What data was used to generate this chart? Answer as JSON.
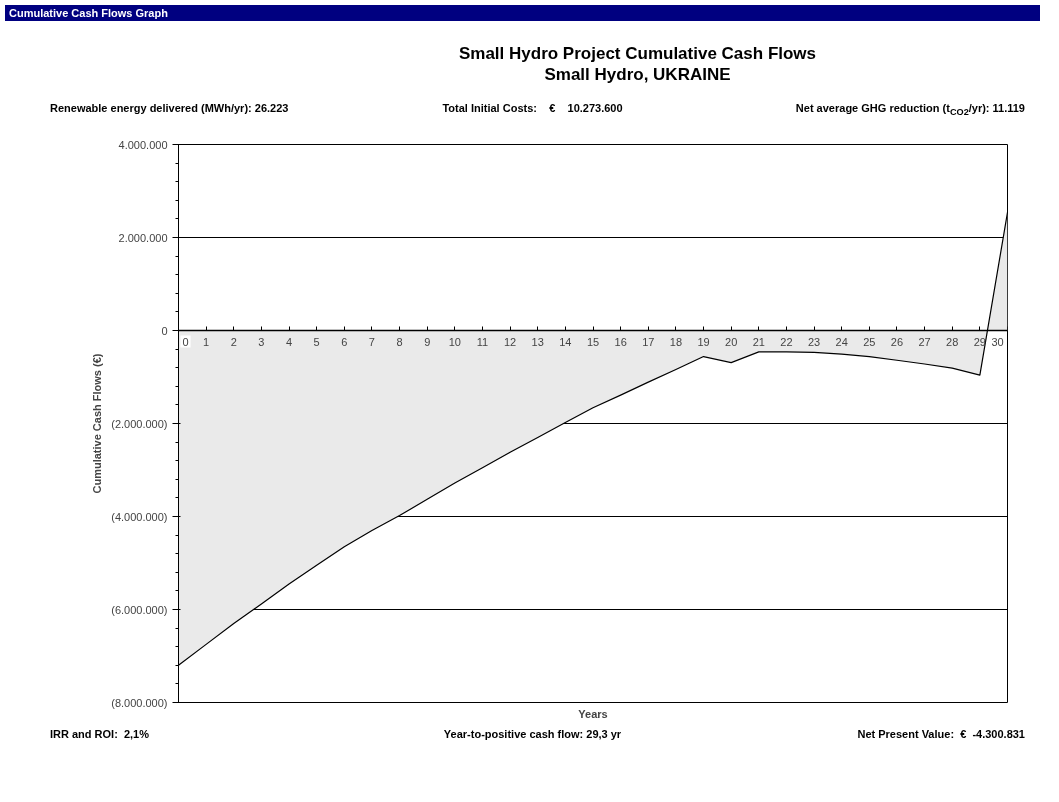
{
  "chart_data": {
    "type": "area",
    "title": "Small Hydro Project Cumulative Cash Flows",
    "subtitle": "Small Hydro, UKRAINE",
    "xlabel": "Years",
    "ylabel": "Cumulative Cash Flows (€)",
    "annotations": [
      "Cumulative Cash Flows Graph",
      "Renewable energy delivered (MWh/yr): 26.223",
      "Total Initial Costs:     €     10.273.600",
      "Net average GHG reduction (t$_{CO2}$/yr): 11.119",
      "IRR and ROI:  2,1%",
      "Year-to-positive cash flow: 29,3 yr",
      "Net Present Value:  €  -4.300.831"
    ],
    "x": [
      0,
      1,
      2,
      3,
      4,
      5,
      6,
      7,
      8,
      9,
      10,
      11,
      12,
      13,
      14,
      15,
      16,
      17,
      18,
      19,
      20,
      21,
      22,
      23,
      24,
      25,
      26,
      27,
      28,
      29,
      30
    ],
    "series": [
      {
        "color": "#eaeaea",
        "values": [
          -7200000,
          -6750000,
          -6300000,
          -5880000,
          -5450000,
          -5050000,
          -4650000,
          -4300000,
          -3980000,
          -3630000,
          -3280000,
          -2950000,
          -2620000,
          -2300000,
          -1980000,
          -1660000,
          -1390000,
          -1110000,
          -840000,
          -560000,
          -690000,
          -460000,
          -460000,
          -470000,
          -510000,
          -560000,
          -640000,
          -720000,
          -810000,
          -960000,
          2540000
        ]
      }
    ],
    "xlim": [
      0,
      30
    ],
    "xticks": [
      0,
      1,
      2,
      3,
      4,
      5,
      6,
      7,
      8,
      9,
      10,
      11,
      12,
      13,
      14,
      15,
      16,
      17,
      18,
      19,
      20,
      21,
      22,
      23,
      24,
      25,
      26,
      27,
      28,
      29,
      30
    ],
    "ylim": [
      -8000000,
      4000000
    ],
    "yticks": [
      {
        "value": -8000000,
        "label": "(8.000.000)"
      },
      {
        "value": -6000000,
        "label": "(6.000.000)"
      },
      {
        "value": -4000000,
        "label": "(4.000.000)"
      },
      {
        "value": -2000000,
        "label": "(2.000.000)"
      },
      {
        "value": 0,
        "label": "0"
      },
      {
        "value": 2000000,
        "label": "2.000.000"
      },
      {
        "value": 4000000,
        "label": "4.000.000"
      }
    ],
    "grid": "y"
  }
}
